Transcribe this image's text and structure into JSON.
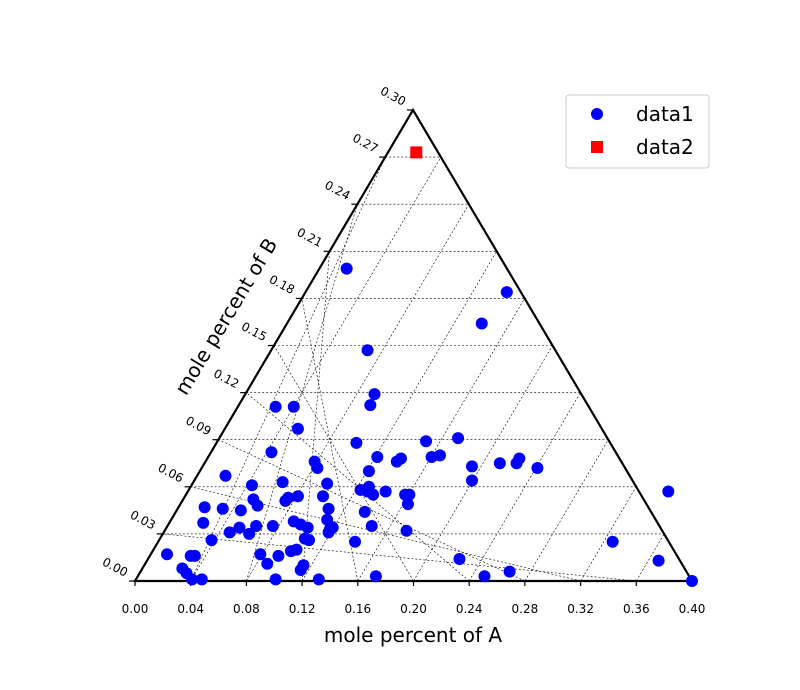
{
  "chart_data": {
    "type": "scatter",
    "subtype": "ternary",
    "xlabel": "mole percent of A",
    "ylabel": "mole percent of B",
    "x_ticks": [
      "0.00",
      "0.04",
      "0.08",
      "0.12",
      "0.16",
      "0.20",
      "0.24",
      "0.28",
      "0.32",
      "0.36",
      "0.40"
    ],
    "b_ticks": [
      "0.00",
      "0.03",
      "0.06",
      "0.09",
      "0.12",
      "0.15",
      "0.18",
      "0.21",
      "0.24",
      "0.27",
      "0.30"
    ],
    "xlim": [
      0,
      0.4
    ],
    "blim": [
      0,
      0.3
    ],
    "grid": true,
    "legend_position": "top-right",
    "colors": {
      "data1": "#0000ff",
      "data2": "#ff0000"
    },
    "series": [
      {
        "name": "data1",
        "marker": "circle",
        "points": [
          {
            "a": 0.023,
            "b": 0.017
          },
          {
            "a": 0.034,
            "b": 0.008
          },
          {
            "a": 0.037,
            "b": 0.005
          },
          {
            "a": 0.04,
            "b": 0.016
          },
          {
            "a": 0.043,
            "b": 0.016
          },
          {
            "a": 0.041,
            "b": 0.001
          },
          {
            "a": 0.048,
            "b": 0.001
          },
          {
            "a": 0.055,
            "b": 0.026
          },
          {
            "a": 0.05,
            "b": 0.047
          },
          {
            "a": 0.049,
            "b": 0.037
          },
          {
            "a": 0.065,
            "b": 0.067
          },
          {
            "a": 0.063,
            "b": 0.046
          },
          {
            "a": 0.068,
            "b": 0.031
          },
          {
            "a": 0.076,
            "b": 0.045
          },
          {
            "a": 0.075,
            "b": 0.034
          },
          {
            "a": 0.082,
            "b": 0.03
          },
          {
            "a": 0.084,
            "b": 0.061
          },
          {
            "a": 0.085,
            "b": 0.052
          },
          {
            "a": 0.087,
            "b": 0.035
          },
          {
            "a": 0.088,
            "b": 0.048
          },
          {
            "a": 0.09,
            "b": 0.017
          },
          {
            "a": 0.095,
            "b": 0.011
          },
          {
            "a": 0.098,
            "b": 0.082
          },
          {
            "a": 0.099,
            "b": 0.035
          },
          {
            "a": 0.101,
            "b": 0.001
          },
          {
            "a": 0.103,
            "b": 0.016
          },
          {
            "a": 0.106,
            "b": 0.063
          },
          {
            "a": 0.108,
            "b": 0.051
          },
          {
            "a": 0.11,
            "b": 0.053
          },
          {
            "a": 0.112,
            "b": 0.019
          },
          {
            "a": 0.116,
            "b": 0.02
          },
          {
            "a": 0.114,
            "b": 0.038
          },
          {
            "a": 0.117,
            "b": 0.054
          },
          {
            "a": 0.119,
            "b": 0.036
          },
          {
            "a": 0.119,
            "b": 0.007
          },
          {
            "a": 0.121,
            "b": 0.01
          },
          {
            "a": 0.122,
            "b": 0.027
          },
          {
            "a": 0.124,
            "b": 0.034
          },
          {
            "a": 0.125,
            "b": 0.026
          },
          {
            "a": 0.129,
            "b": 0.076
          },
          {
            "a": 0.131,
            "b": 0.072
          },
          {
            "a": 0.135,
            "b": 0.054
          },
          {
            "a": 0.138,
            "b": 0.039
          },
          {
            "a": 0.138,
            "b": 0.062
          },
          {
            "a": 0.139,
            "b": 0.031
          },
          {
            "a": 0.14,
            "b": 0.033
          },
          {
            "a": 0.139,
            "b": 0.046
          },
          {
            "a": 0.142,
            "b": 0.034
          },
          {
            "a": 0.132,
            "b": 0.001
          },
          {
            "a": 0.159,
            "b": 0.088
          },
          {
            "a": 0.158,
            "b": 0.025
          },
          {
            "a": 0.162,
            "b": 0.058
          },
          {
            "a": 0.165,
            "b": 0.044
          },
          {
            "a": 0.168,
            "b": 0.07
          },
          {
            "a": 0.167,
            "b": 0.057
          },
          {
            "a": 0.168,
            "b": 0.06
          },
          {
            "a": 0.17,
            "b": 0.035
          },
          {
            "a": 0.171,
            "b": 0.055
          },
          {
            "a": 0.174,
            "b": 0.079
          },
          {
            "a": 0.173,
            "b": 0.003
          },
          {
            "a": 0.18,
            "b": 0.057
          },
          {
            "a": 0.188,
            "b": 0.076
          },
          {
            "a": 0.191,
            "b": 0.078
          },
          {
            "a": 0.194,
            "b": 0.055
          },
          {
            "a": 0.195,
            "b": 0.032
          },
          {
            "a": 0.196,
            "b": 0.049
          },
          {
            "a": 0.197,
            "b": 0.055
          },
          {
            "a": 0.209,
            "b": 0.089
          },
          {
            "a": 0.213,
            "b": 0.079
          },
          {
            "a": 0.219,
            "b": 0.08
          },
          {
            "a": 0.232,
            "b": 0.091
          },
          {
            "a": 0.233,
            "b": 0.014
          },
          {
            "a": 0.242,
            "b": 0.073
          },
          {
            "a": 0.242,
            "b": 0.064
          },
          {
            "a": 0.251,
            "b": 0.003
          },
          {
            "a": 0.262,
            "b": 0.075
          },
          {
            "a": 0.269,
            "b": 0.006
          },
          {
            "a": 0.274,
            "b": 0.075
          },
          {
            "a": 0.276,
            "b": 0.078
          },
          {
            "a": 0.289,
            "b": 0.072
          },
          {
            "a": 0.343,
            "b": 0.025
          },
          {
            "a": 0.376,
            "b": 0.013
          },
          {
            "a": 0.383,
            "b": 0.057
          },
          {
            "a": 0.4,
            "b": 0.0
          },
          {
            "a": 0.249,
            "b": 0.164
          },
          {
            "a": 0.267,
            "b": 0.184
          },
          {
            "a": 0.167,
            "b": 0.147
          },
          {
            "a": 0.152,
            "b": 0.199
          },
          {
            "a": 0.169,
            "b": 0.112
          },
          {
            "a": 0.172,
            "b": 0.119
          },
          {
            "a": 0.101,
            "b": 0.111
          },
          {
            "a": 0.114,
            "b": 0.111
          },
          {
            "a": 0.117,
            "b": 0.097
          }
        ]
      },
      {
        "name": "data2",
        "marker": "square",
        "points": [
          {
            "a": 0.202,
            "b": 0.273
          }
        ]
      }
    ]
  }
}
